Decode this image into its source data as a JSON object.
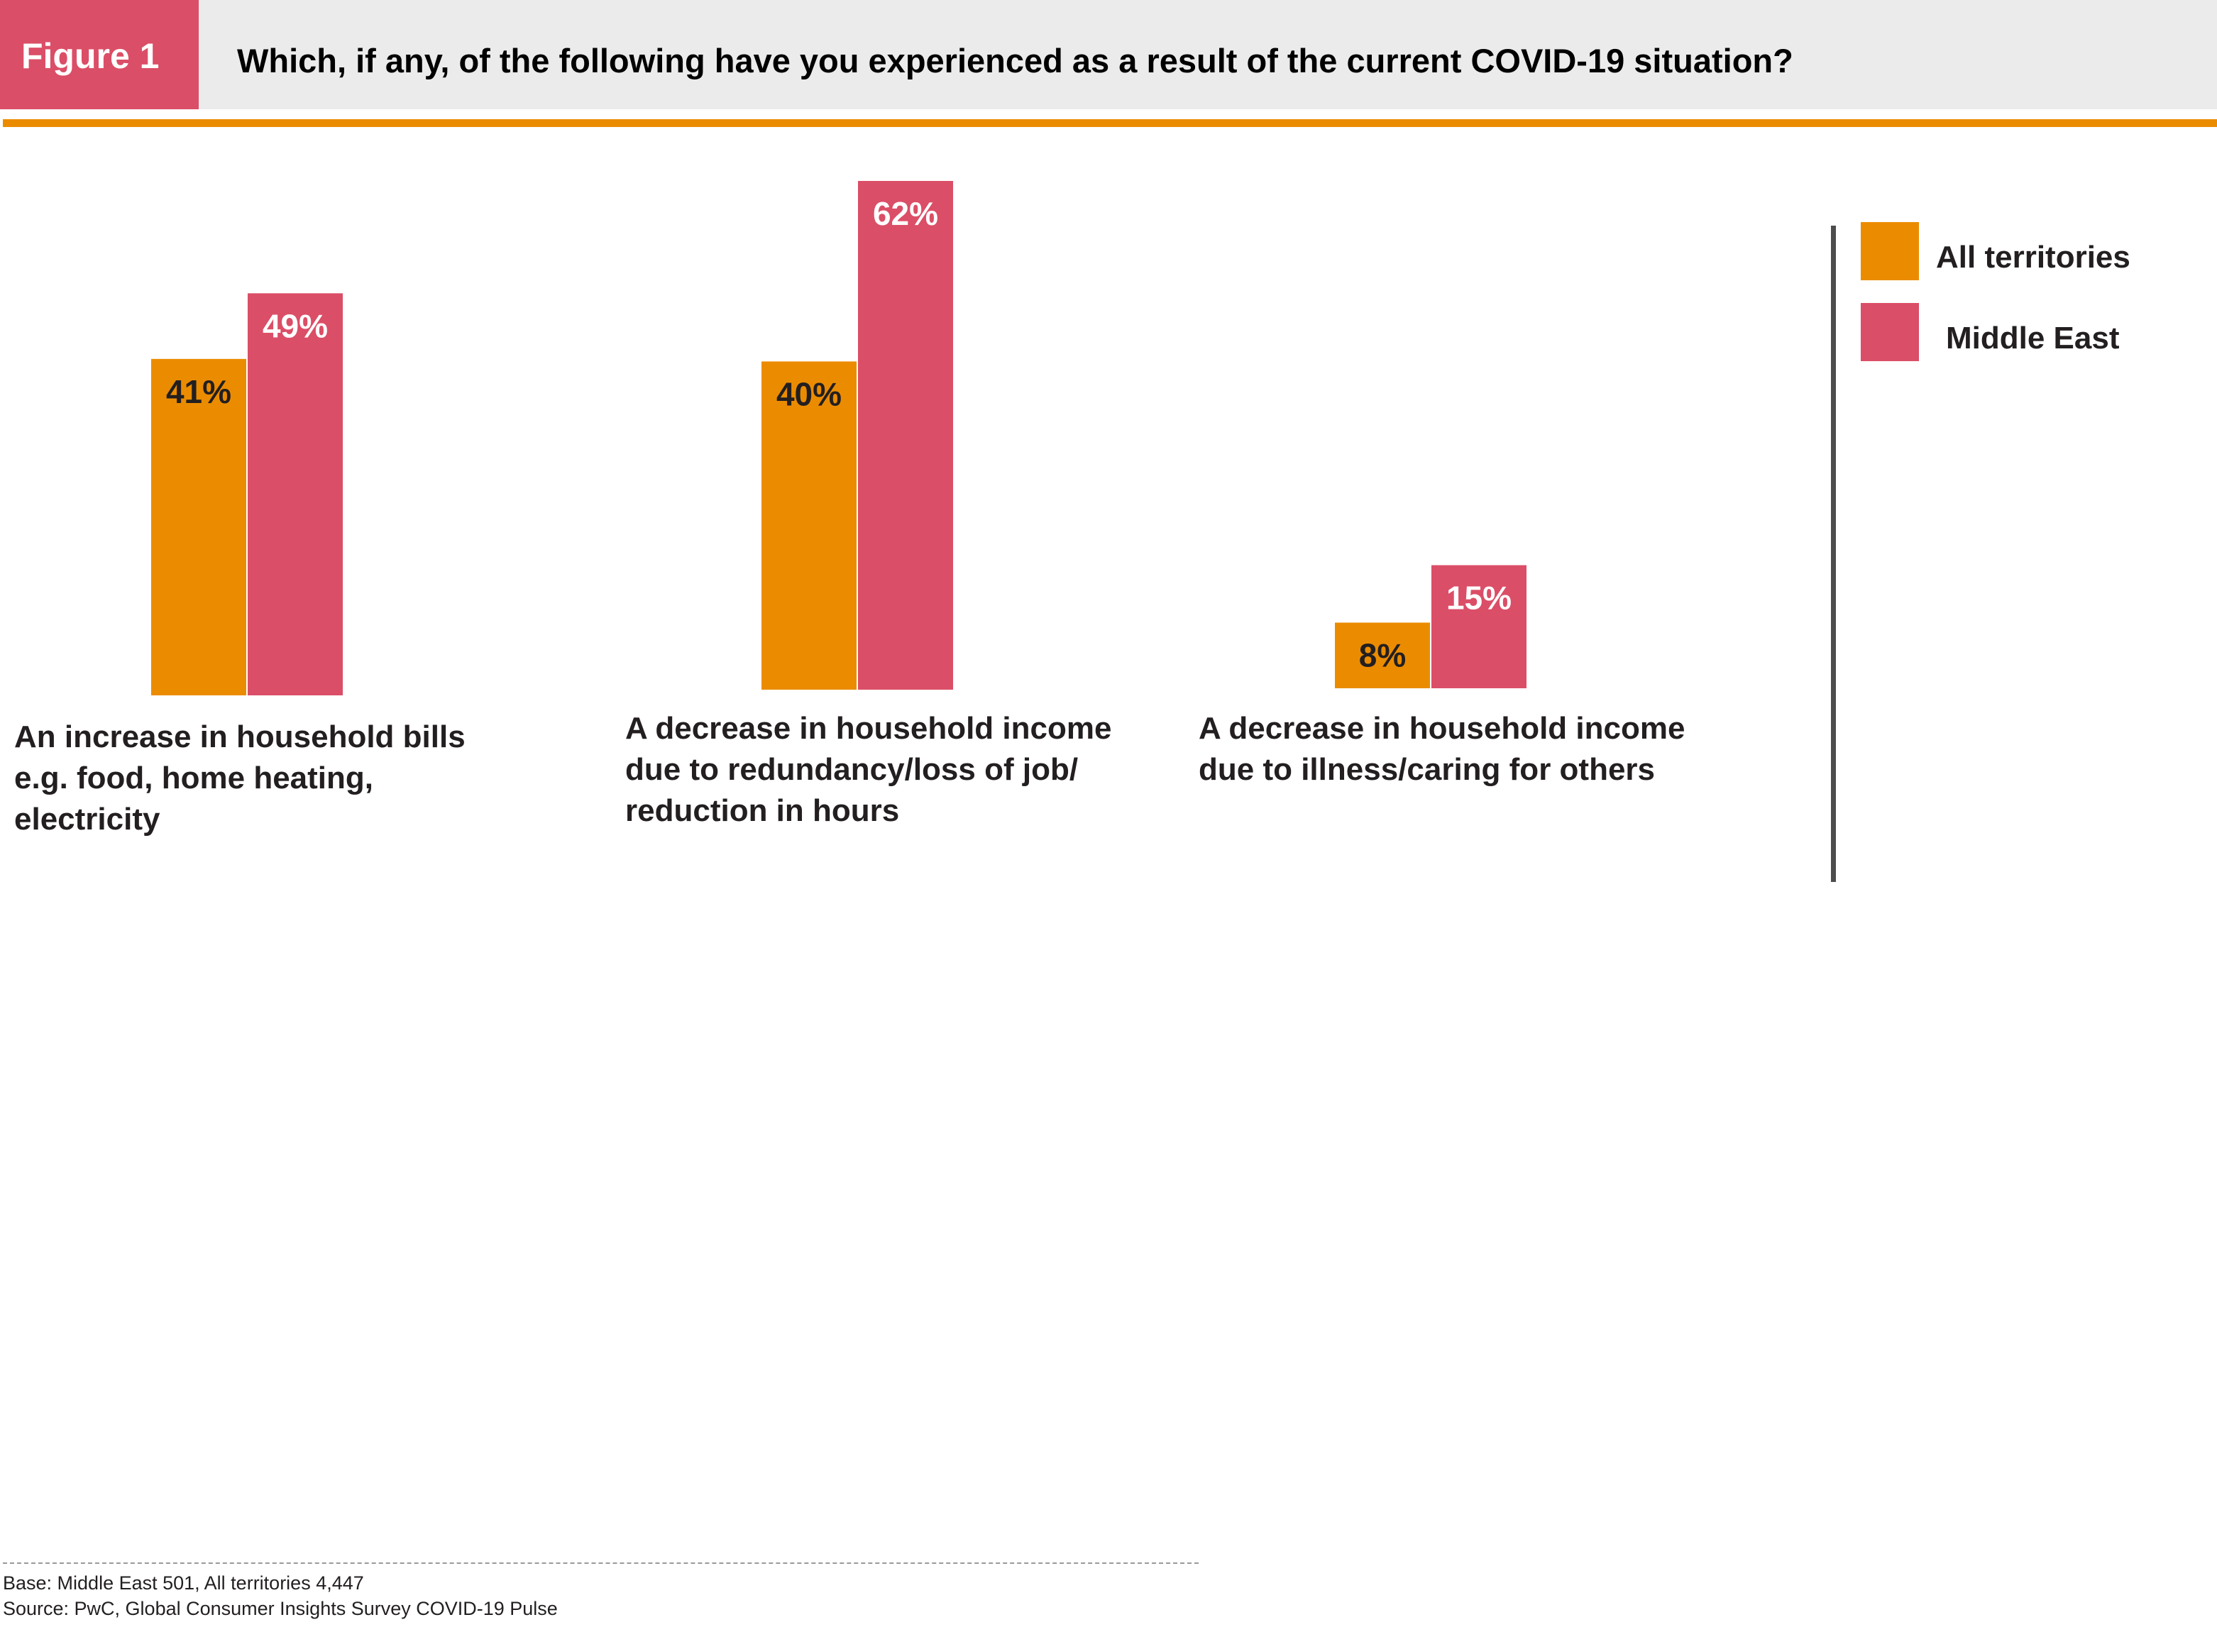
{
  "header": {
    "figure_label": "Figure 1",
    "title": "Which, if any, of the following have you experienced as a result of the current COVID-19 situation?"
  },
  "colors": {
    "all_territories": "#eb8c00",
    "middle_east": "#db4e67",
    "header_bg": "#ebebeb"
  },
  "chart_data": {
    "type": "bar",
    "title": "Which, if any, of the following have you experienced as a result of the current COVID-19 situation?",
    "categories": [
      "An increase in household bills\ne.g. food, home heating,\nelectricity",
      "A decrease in household income\ndue to redundancy/loss of job/\nreduction in hours",
      "A decrease in household income\ndue to illness/caring for others"
    ],
    "series": [
      {
        "name": "All territories",
        "values": [
          41,
          40,
          8
        ],
        "labels": [
          "41%",
          "40%",
          "8%"
        ]
      },
      {
        "name": "Middle East",
        "values": [
          49,
          62,
          15
        ],
        "labels": [
          "49%",
          "62%",
          "15%"
        ]
      }
    ],
    "xlabel": "",
    "ylabel": "",
    "ylim": [
      0,
      62
    ],
    "grid": false,
    "legend_position": "right"
  },
  "legend": {
    "items": [
      {
        "label": "All territories"
      },
      {
        "label": "Middle East"
      }
    ]
  },
  "footer": {
    "base": "Base: Middle East 501, All territories 4,447",
    "source": "Source: PwC, Global Consumer Insights Survey COVID-19 Pulse"
  }
}
